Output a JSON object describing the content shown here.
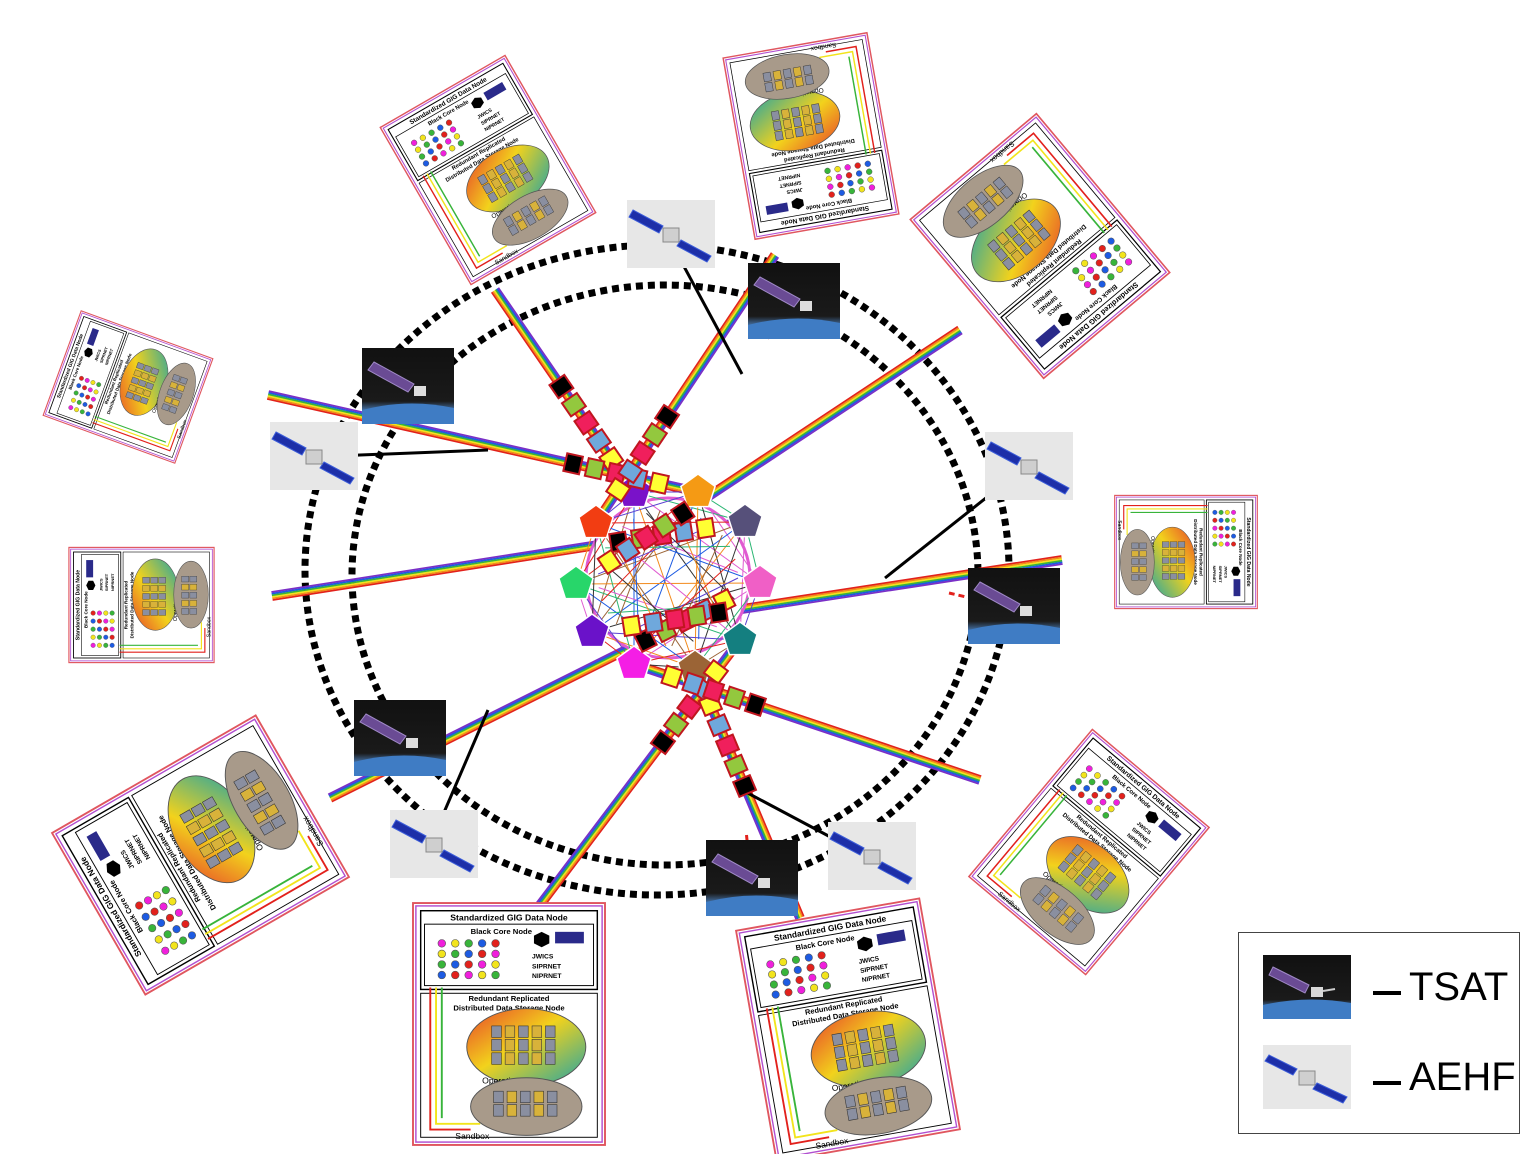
{
  "node": {
    "title": "Standardized GIG Data Node",
    "core_label": "Black Core Node",
    "net_labels": [
      "JWICS",
      "SIPRNET",
      "NIPRNET"
    ],
    "storage_title_line1": "Redundant Replicated",
    "storage_title_line2": "Distributed Data Storage Node",
    "operations_label": "Operations",
    "sandbox_label": "Sandbox"
  },
  "legend": {
    "items": [
      {
        "label": "TSAT",
        "icon": "tsat-satellite-icon"
      },
      {
        "label": "AEHF",
        "icon": "aehf-satellite-icon"
      }
    ]
  },
  "colors": {
    "hex_nodes": [
      "#7a12c9",
      "#f59a14",
      "#56507a",
      "#f05fc6",
      "#147f80",
      "#9b6436",
      "#f41ee5",
      "#6a12c9",
      "#28d66a",
      "#f23d12"
    ],
    "rainbow": [
      "#e2211c",
      "#f28a1c",
      "#f2e41c",
      "#38b43a",
      "#1d5be2",
      "#7a2fc7"
    ],
    "router_boxes": [
      "#000000",
      "#93c83e",
      "#f01f5c",
      "#6fa8dc",
      "#ffff33"
    ]
  }
}
